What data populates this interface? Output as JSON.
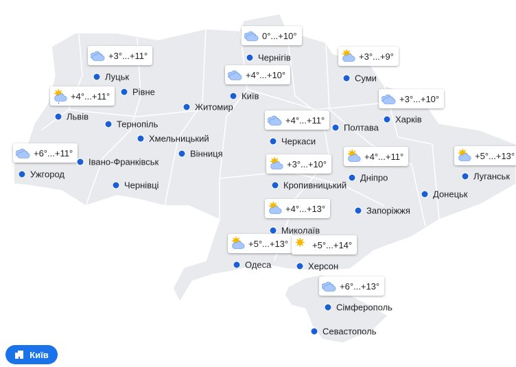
{
  "cities": [
    {
      "name": "Чернігів",
      "temp": "0°...+10°"
    },
    {
      "name": "Суми",
      "temp": "+3°...+9°"
    },
    {
      "name": "Луцьк",
      "temp": "+3°...+11°"
    },
    {
      "name": "Київ",
      "temp": "+4°...+10°"
    },
    {
      "name": "Рівне"
    },
    {
      "name": "Львів",
      "temp": "+4°...+11°"
    },
    {
      "name": "Харків",
      "temp": "+3°...+10°"
    },
    {
      "name": "Житомир"
    },
    {
      "name": "Тернопіль"
    },
    {
      "name": "Полтава"
    },
    {
      "name": "Черкаси",
      "temp": "+4°...+11°"
    },
    {
      "name": "Хмельницький"
    },
    {
      "name": "Вінниця"
    },
    {
      "name": "Ужгород",
      "temp": "+6°...+11°"
    },
    {
      "name": "Івано-Франківськ"
    },
    {
      "name": "Луганськ",
      "temp": "+5°...+13°"
    },
    {
      "name": "Дніпро",
      "temp": "+4°...+11°"
    },
    {
      "name": "Кропивницький",
      "temp": "+3°...+10°"
    },
    {
      "name": "Чернівці"
    },
    {
      "name": "Донецьк"
    },
    {
      "name": "Запоріжжя"
    },
    {
      "name": "Миколаїв",
      "temp": "+4°...+13°"
    },
    {
      "name": "Одеса",
      "temp": "+5°...+13°"
    },
    {
      "name": "Херсон",
      "temp": "+5°...+14°"
    },
    {
      "name": "Сімферополь",
      "temp": "+6°...+13°"
    },
    {
      "name": "Севастополь"
    }
  ],
  "location_button": {
    "label": "Київ"
  }
}
